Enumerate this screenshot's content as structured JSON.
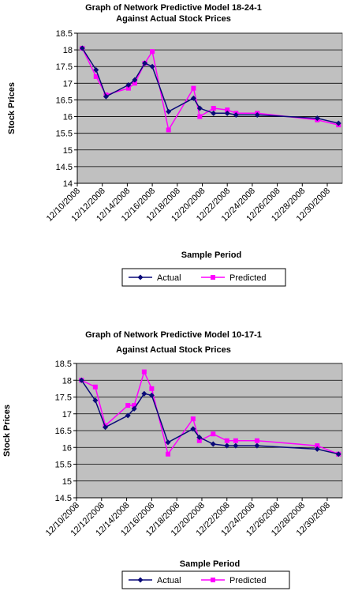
{
  "chart_data": [
    {
      "type": "line",
      "title_lines": [
        "Graph of Network Predictive Model 18-24-1",
        "Against Actual Stock Prices"
      ],
      "xlabel": "Sample Period",
      "ylabel": "Stock Prices",
      "ylim": [
        14,
        18.5
      ],
      "yticks": [
        "14",
        "14.5",
        "15",
        "15.5",
        "16",
        "16.5",
        "17",
        "17.5",
        "18",
        "18.5"
      ],
      "xtick_labels": [
        "12/10/2008",
        "12/12/2008",
        "12/14/2008",
        "12/16/2008",
        "12/18/2008",
        "12/20/2008",
        "12/22/2008",
        "12/24/2008",
        "12/26/2008",
        "12/28/2008",
        "12/30/2008"
      ],
      "x_range": [
        10,
        31.2
      ],
      "grid": "horizontal gridlines",
      "legend_position": "bottom",
      "series": [
        {
          "name": "Actual",
          "color": "#0a0a78",
          "marker": "diamond",
          "x": [
            10.4,
            11.5,
            12.3,
            14.1,
            14.6,
            15.4,
            16.0,
            17.3,
            19.3,
            19.8,
            20.9,
            22.0,
            22.7,
            24.4,
            29.2,
            30.9
          ],
          "y": [
            18.05,
            17.4,
            16.6,
            16.95,
            17.1,
            17.6,
            17.5,
            16.15,
            16.55,
            16.25,
            16.1,
            16.1,
            16.05,
            16.05,
            15.95,
            15.8
          ]
        },
        {
          "name": "Predicted",
          "color": "#ff00ff",
          "marker": "square",
          "x": [
            10.4,
            11.5,
            12.3,
            14.1,
            14.6,
            15.4,
            16.0,
            17.3,
            19.3,
            19.8,
            20.9,
            22.0,
            22.7,
            24.4,
            29.2,
            30.9
          ],
          "y": [
            18.05,
            17.2,
            16.65,
            16.85,
            17.0,
            17.6,
            17.95,
            15.6,
            16.85,
            16.0,
            16.25,
            16.2,
            16.1,
            16.1,
            15.9,
            15.75
          ]
        }
      ]
    },
    {
      "type": "line",
      "title_lines": [
        "Graph of Network Predictive Model 10-17-1",
        "Against Actual Stock Prices"
      ],
      "xlabel": "Sample Period",
      "ylabel": "Stock Prices",
      "ylim": [
        14.5,
        18.5
      ],
      "yticks": [
        "14.5",
        "15",
        "15.5",
        "16",
        "16.5",
        "17",
        "17.5",
        "18",
        "18.5"
      ],
      "xtick_labels": [
        "12/10/2008",
        "12/12/2008",
        "12/14/2008",
        "12/16/2008",
        "12/18/2008",
        "12/20/2008",
        "12/22/2008",
        "12/24/2008",
        "12/26/2008",
        "12/28/2008",
        "12/30/2008"
      ],
      "x_range": [
        10,
        31.2
      ],
      "grid": "horizontal gridlines",
      "legend_position": "bottom",
      "series": [
        {
          "name": "Actual",
          "color": "#0a0a78",
          "marker": "diamond",
          "x": [
            10.4,
            11.5,
            12.3,
            14.1,
            14.6,
            15.4,
            16.0,
            17.3,
            19.3,
            19.8,
            20.9,
            22.0,
            22.7,
            24.4,
            29.2,
            30.9
          ],
          "y": [
            18.0,
            17.4,
            16.6,
            16.95,
            17.15,
            17.6,
            17.55,
            16.15,
            16.55,
            16.3,
            16.1,
            16.05,
            16.05,
            16.05,
            15.95,
            15.8
          ]
        },
        {
          "name": "Predicted",
          "color": "#ff00ff",
          "marker": "square",
          "x": [
            10.4,
            11.5,
            12.3,
            14.1,
            14.6,
            15.4,
            16.0,
            17.3,
            19.3,
            19.8,
            20.9,
            22.0,
            22.7,
            24.4,
            29.2,
            30.9
          ],
          "y": [
            18.0,
            17.8,
            16.65,
            17.25,
            17.25,
            18.25,
            17.75,
            15.8,
            16.85,
            16.2,
            16.4,
            16.2,
            16.2,
            16.2,
            16.05,
            15.8
          ]
        }
      ]
    }
  ]
}
